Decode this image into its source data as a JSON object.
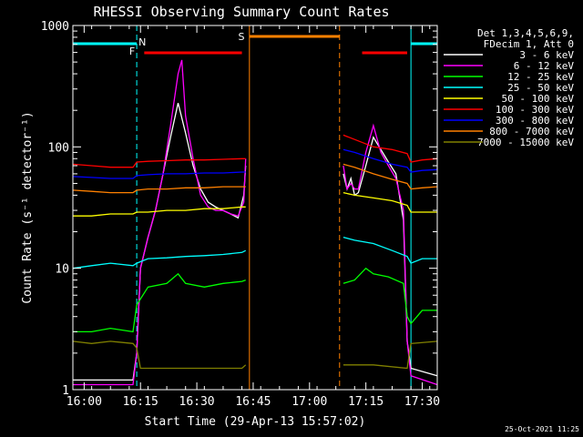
{
  "chart_data": {
    "type": "line",
    "title": "RHESSI Observing Summary Count Rates",
    "xlabel": "Start Time (29-Apr-13 15:57:02)",
    "ylabel": "Count Rate (s⁻¹ detector⁻¹)",
    "ylog": true,
    "ylim": [
      1,
      1000
    ],
    "xlim_min_after_1557": [
      0,
      97
    ],
    "y_tick_labels": [
      "1",
      "10",
      "100",
      "1000"
    ],
    "x_tick_labels": [
      "16:00",
      "16:15",
      "16:30",
      "16:45",
      "17:00",
      "17:15",
      "17:30"
    ],
    "x_ticks_min": [
      3,
      18,
      33,
      48,
      63,
      78,
      93
    ],
    "legend_header": [
      "Det 1,3,4,5,6,9,",
      "FDecim 1, Att 0"
    ],
    "timestamp": "25-Oct-2021 11:25",
    "flags": [
      {
        "label": "N",
        "color": "#00ffff"
      },
      {
        "label": "F",
        "color": "#ff0000"
      },
      {
        "label": "S",
        "color": "#ff8000"
      }
    ],
    "flag_bars": [
      {
        "label": "night",
        "color": "#00ffff",
        "intervals": [
          [
            0,
            17
          ],
          [
            90,
            97
          ]
        ]
      },
      {
        "label": "flare",
        "color": "#ff0000",
        "intervals": [
          [
            19,
            45
          ],
          [
            77,
            89
          ]
        ]
      },
      {
        "label": "saa",
        "color": "#ff8000",
        "intervals": [
          [
            47,
            71
          ]
        ]
      }
    ],
    "vlines": [
      {
        "color": "#00ffff",
        "style": "solid",
        "x": 0
      },
      {
        "color": "#00ffff",
        "style": "dashed",
        "x": 17
      },
      {
        "color": "#ff8000",
        "style": "solid",
        "x": 47
      },
      {
        "color": "#ff8000",
        "style": "dashed",
        "x": 71
      },
      {
        "color": "#00ffff",
        "style": "solid",
        "x": 90
      },
      {
        "color": "#00ffff",
        "style": "dashed",
        "x": 97
      }
    ],
    "series": [
      {
        "name": "3 - 6 keV",
        "color": "#ffffff",
        "x": [
          0,
          16,
          17,
          18,
          20,
          22,
          24,
          26,
          28,
          30,
          32,
          34,
          36,
          38,
          40,
          42,
          44,
          45.5,
          46,
          71,
          72,
          73,
          74,
          75,
          76,
          78,
          80,
          82,
          84,
          86,
          88,
          89,
          90,
          97
        ],
        "y": [
          1.2,
          1.2,
          2,
          10,
          18,
          30,
          60,
          120,
          230,
          130,
          70,
          45,
          35,
          32,
          30,
          28,
          26,
          40,
          70,
          null,
          60,
          45,
          55,
          40,
          42,
          70,
          120,
          95,
          75,
          60,
          25,
          2.5,
          1.5,
          1.3
        ]
      },
      {
        "name": "6 - 12 keV",
        "color": "#ff00ff",
        "x": [
          0,
          16,
          17,
          18,
          20,
          22,
          24,
          26,
          28,
          29,
          30,
          32,
          34,
          36,
          38,
          40,
          42,
          44,
          45.5,
          46,
          71,
          72,
          73,
          74,
          75,
          76,
          78,
          80,
          82,
          84,
          86,
          88,
          89,
          90,
          97
        ],
        "y": [
          1.1,
          1.1,
          2,
          10,
          18,
          30,
          60,
          150,
          400,
          520,
          180,
          80,
          40,
          32,
          30,
          30,
          28,
          27,
          35,
          80,
          null,
          70,
          45,
          50,
          45,
          45,
          90,
          150,
          90,
          70,
          55,
          30,
          2.5,
          1.3,
          1.1
        ]
      },
      {
        "name": "12 - 25 keV",
        "color": "#00ff00",
        "x": [
          0,
          5,
          10,
          16,
          17,
          20,
          25,
          28,
          30,
          35,
          40,
          45,
          46,
          71,
          72,
          75,
          78,
          80,
          84,
          88,
          89,
          90,
          93,
          97
        ],
        "y": [
          3,
          3,
          3.2,
          3,
          5,
          7,
          7.5,
          9,
          7.5,
          7,
          7.5,
          7.8,
          8,
          null,
          7.5,
          8,
          10,
          9,
          8.5,
          7.5,
          4,
          3.5,
          4.5,
          4.5
        ]
      },
      {
        "name": "25 - 50 keV",
        "color": "#00ffff",
        "x": [
          0,
          5,
          10,
          16,
          17,
          20,
          25,
          30,
          35,
          40,
          45,
          46,
          71,
          72,
          75,
          80,
          85,
          89,
          90,
          93,
          97
        ],
        "y": [
          10,
          10.5,
          11,
          10.5,
          11,
          12,
          12.2,
          12.5,
          12.7,
          13,
          13.5,
          14,
          null,
          18,
          17,
          16,
          14,
          12.5,
          11,
          12,
          12
        ]
      },
      {
        "name": "50 - 100 keV",
        "color": "#ffff00",
        "x": [
          0,
          5,
          10,
          16,
          17,
          20,
          25,
          30,
          35,
          40,
          45,
          46,
          71,
          72,
          75,
          80,
          85,
          89,
          90,
          93,
          97
        ],
        "y": [
          27,
          27,
          28,
          28,
          29,
          29,
          30,
          30,
          31,
          31,
          32,
          32,
          null,
          42,
          40,
          38,
          36,
          33,
          29,
          29,
          29
        ]
      },
      {
        "name": "100 - 300 keV",
        "color": "#ff0000",
        "x": [
          0,
          5,
          10,
          16,
          17,
          20,
          25,
          30,
          35,
          40,
          45,
          46,
          71,
          72,
          75,
          80,
          85,
          89,
          90,
          93,
          97
        ],
        "y": [
          72,
          70,
          68,
          68,
          75,
          76,
          77,
          78,
          78,
          79,
          80,
          80,
          null,
          125,
          115,
          100,
          95,
          88,
          75,
          78,
          80
        ]
      },
      {
        "name": "300 - 800 keV",
        "color": "#0000ff",
        "x": [
          0,
          5,
          10,
          16,
          17,
          20,
          25,
          30,
          35,
          40,
          45,
          46,
          71,
          72,
          75,
          80,
          85,
          89,
          90,
          93,
          97
        ],
        "y": [
          57,
          56,
          55,
          55,
          58,
          59,
          60,
          60,
          61,
          61,
          62,
          62,
          null,
          95,
          90,
          80,
          72,
          68,
          62,
          64,
          65
        ]
      },
      {
        "name": "800 - 7000 keV",
        "color": "#ff8000",
        "x": [
          0,
          5,
          10,
          16,
          17,
          20,
          25,
          30,
          35,
          40,
          45,
          46,
          71,
          72,
          75,
          80,
          85,
          89,
          90,
          93,
          97
        ],
        "y": [
          44,
          43,
          42,
          42,
          44,
          45,
          45,
          46,
          46,
          47,
          47,
          47,
          null,
          72,
          68,
          60,
          54,
          50,
          45,
          46,
          47
        ]
      },
      {
        "name": "7000 - 15000 keV",
        "color": "#808000",
        "x": [
          0,
          5,
          10,
          16,
          17,
          18,
          25,
          35,
          45,
          46,
          71,
          72,
          80,
          89,
          90,
          97
        ],
        "y": [
          2.5,
          2.4,
          2.5,
          2.4,
          2.2,
          1.5,
          1.5,
          1.5,
          1.5,
          1.6,
          null,
          1.6,
          1.6,
          1.5,
          2.4,
          2.5
        ]
      }
    ]
  }
}
